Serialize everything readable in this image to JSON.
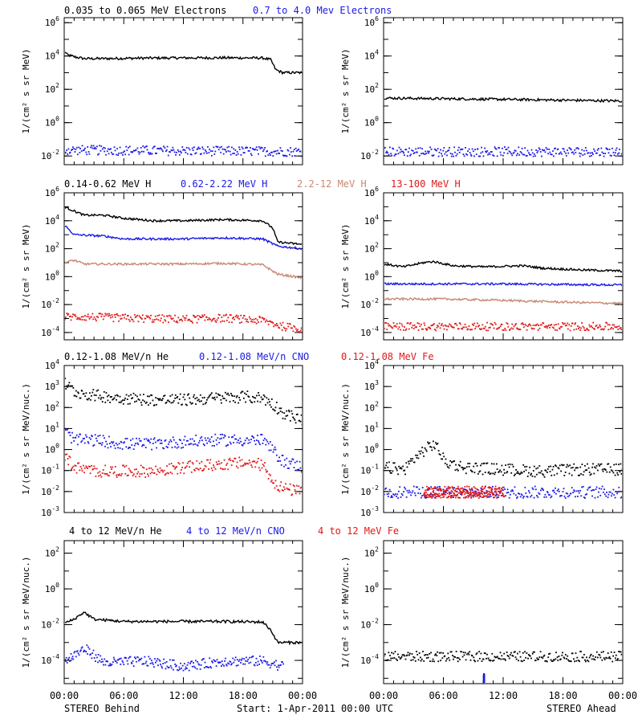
{
  "colors": {
    "black": "#000000",
    "blue": "#1a1ae6",
    "tan": "#c98872",
    "red": "#e01818"
  },
  "footer": {
    "left": "STEREO Behind",
    "center": "Start:  1-Apr-2011 00:00 UTC",
    "right": "STEREO Ahead"
  },
  "x_ticks": [
    "00:00",
    "06:00",
    "12:00",
    "18:00",
    "00:00"
  ],
  "chart_data": [
    {
      "type": "scatter",
      "row": 0,
      "col": 0,
      "log_y": true,
      "ylabel": "1/(cm² s sr MeV)",
      "ylim": [
        0.003,
        2000000
      ],
      "y_ticks": [
        {
          "v": 1000000.0,
          "b": "10",
          "e": "6"
        },
        {
          "v": 10000.0,
          "b": "10",
          "e": "4"
        },
        {
          "v": 100.0,
          "b": "10",
          "e": "2"
        },
        {
          "v": 1,
          "b": "10",
          "e": "0"
        },
        {
          "v": 0.01,
          "b": "10",
          "e": "-2"
        }
      ],
      "x_range_hours": [
        0,
        24
      ],
      "series": [
        {
          "name": "0.035 to 0.065 MeV Electrons",
          "color": "#000000",
          "mode": "line",
          "points": [
            [
              0,
              20000
            ],
            [
              0.3,
              12000
            ],
            [
              1,
              9000
            ],
            [
              2,
              7000
            ],
            [
              4,
              7000
            ],
            [
              8,
              7500
            ],
            [
              12,
              7700
            ],
            [
              16,
              7800
            ],
            [
              20,
              7600
            ],
            [
              20.8,
              6000
            ],
            [
              21.3,
              1500
            ],
            [
              22,
              1000
            ],
            [
              24,
              1000
            ]
          ]
        },
        {
          "name": "0.7 to 4.0 Mev Electrons",
          "color": "#1a1ae6",
          "mode": "dots",
          "points": [
            [
              0,
              0.025
            ],
            [
              24,
              0.02
            ]
          ]
        }
      ]
    },
    {
      "type": "scatter",
      "row": 0,
      "col": 1,
      "log_y": true,
      "ylabel": "1/(cm² s sr MeV)",
      "ylim": [
        0.003,
        2000000
      ],
      "y_ticks": [
        {
          "v": 1000000.0,
          "b": "10",
          "e": "6"
        },
        {
          "v": 10000.0,
          "b": "10",
          "e": "4"
        },
        {
          "v": 100.0,
          "b": "10",
          "e": "2"
        },
        {
          "v": 1,
          "b": "10",
          "e": "0"
        },
        {
          "v": 0.01,
          "b": "10",
          "e": "-2"
        }
      ],
      "x_range_hours": [
        0,
        24
      ],
      "series": [
        {
          "color": "#000000",
          "mode": "line",
          "points": [
            [
              0,
              30
            ],
            [
              12,
              25
            ],
            [
              24,
              20
            ]
          ]
        },
        {
          "color": "#1a1ae6",
          "mode": "dots",
          "points": [
            [
              0,
              0.02
            ],
            [
              24,
              0.02
            ]
          ]
        }
      ]
    },
    {
      "type": "scatter",
      "row": 1,
      "col": 0,
      "log_y": true,
      "ylabel": "1/(cm² s sr MeV)",
      "ylim": [
        3e-05,
        1000000
      ],
      "y_ticks": [
        {
          "v": 1000000.0,
          "b": "10",
          "e": "6"
        },
        {
          "v": 10000.0,
          "b": "10",
          "e": "4"
        },
        {
          "v": 100.0,
          "b": "10",
          "e": "2"
        },
        {
          "v": 1,
          "b": "10",
          "e": "0"
        },
        {
          "v": 0.01,
          "b": "10",
          "e": "-2"
        },
        {
          "v": 0.0001,
          "b": "10",
          "e": "-4"
        }
      ],
      "x_range_hours": [
        0,
        24
      ],
      "series": [
        {
          "name": "0.14-0.62 MeV H",
          "color": "#000000",
          "mode": "line",
          "points": [
            [
              0,
              100000
            ],
            [
              1,
              50000
            ],
            [
              2,
              25000
            ],
            [
              4,
              25000
            ],
            [
              6,
              15000
            ],
            [
              9,
              10000
            ],
            [
              12,
              10000
            ],
            [
              16,
              12000
            ],
            [
              20,
              10000
            ],
            [
              21,
              3000
            ],
            [
              21.5,
              300
            ],
            [
              24,
              200
            ]
          ]
        },
        {
          "name": "0.62-2.22 MeV H",
          "color": "#1a1ae6",
          "mode": "line",
          "points": [
            [
              0,
              5000
            ],
            [
              1,
              1000
            ],
            [
              4,
              800
            ],
            [
              6,
              500
            ],
            [
              12,
              500
            ],
            [
              16,
              600
            ],
            [
              20,
              500
            ],
            [
              21.5,
              150
            ],
            [
              24,
              100
            ]
          ]
        },
        {
          "name": "2.2-12 MeV H",
          "color": "#c98872",
          "mode": "line",
          "points": [
            [
              0,
              10
            ],
            [
              1,
              15
            ],
            [
              2,
              8
            ],
            [
              6,
              8
            ],
            [
              12,
              8
            ],
            [
              16,
              9
            ],
            [
              20,
              7
            ],
            [
              21.5,
              1.5
            ],
            [
              24,
              0.8
            ]
          ]
        },
        {
          "name": "13-100 MeV H",
          "color": "#e01818",
          "mode": "dots",
          "points": [
            [
              0,
              0.0015
            ],
            [
              2,
              0.0015
            ],
            [
              6,
              0.0012
            ],
            [
              12,
              0.001
            ],
            [
              16,
              0.0012
            ],
            [
              20,
              0.0008
            ],
            [
              22,
              0.0003
            ],
            [
              24,
              0.0002
            ]
          ]
        }
      ]
    },
    {
      "type": "scatter",
      "row": 1,
      "col": 1,
      "log_y": true,
      "ylabel": "1/(cm² s sr MeV)",
      "ylim": [
        3e-05,
        1000000
      ],
      "y_ticks": [
        {
          "v": 1000000.0,
          "b": "10",
          "e": "6"
        },
        {
          "v": 10000.0,
          "b": "10",
          "e": "4"
        },
        {
          "v": 100.0,
          "b": "10",
          "e": "2"
        },
        {
          "v": 1,
          "b": "10",
          "e": "0"
        },
        {
          "v": 0.01,
          "b": "10",
          "e": "-2"
        },
        {
          "v": 0.0001,
          "b": "10",
          "e": "-4"
        }
      ],
      "x_range_hours": [
        0,
        24
      ],
      "series": [
        {
          "color": "#000000",
          "mode": "line",
          "points": [
            [
              0,
              8
            ],
            [
              2,
              5
            ],
            [
              4,
              10
            ],
            [
              5,
              12
            ],
            [
              7,
              6
            ],
            [
              10,
              5
            ],
            [
              14,
              6
            ],
            [
              16,
              4
            ],
            [
              20,
              3
            ],
            [
              24,
              2.5
            ]
          ]
        },
        {
          "color": "#1a1ae6",
          "mode": "line",
          "points": [
            [
              0,
              0.3
            ],
            [
              6,
              0.3
            ],
            [
              12,
              0.3
            ],
            [
              24,
              0.25
            ]
          ]
        },
        {
          "color": "#c98872",
          "mode": "line",
          "points": [
            [
              0,
              0.025
            ],
            [
              6,
              0.025
            ],
            [
              12,
              0.02
            ],
            [
              18,
              0.015
            ],
            [
              24,
              0.012
            ]
          ]
        },
        {
          "color": "#e01818",
          "mode": "dots",
          "points": [
            [
              0,
              0.0003
            ],
            [
              12,
              0.0003
            ],
            [
              24,
              0.0003
            ]
          ]
        }
      ]
    },
    {
      "type": "scatter",
      "row": 2,
      "col": 0,
      "log_y": true,
      "ylabel": "1/(cm² s sr MeV/nuc.)",
      "ylim": [
        0.001,
        10000
      ],
      "y_ticks": [
        {
          "v": 10000.0,
          "b": "10",
          "e": "4"
        },
        {
          "v": 1000.0,
          "b": "10",
          "e": "3"
        },
        {
          "v": 100.0,
          "b": "10",
          "e": "2"
        },
        {
          "v": 10,
          "b": "10",
          "e": "1"
        },
        {
          "v": 1,
          "b": "10",
          "e": "0"
        },
        {
          "v": 0.1,
          "b": "10",
          "e": "-1"
        },
        {
          "v": 0.01,
          "b": "10",
          "e": "-2"
        },
        {
          "v": 0.001,
          "b": "10",
          "e": "-3"
        }
      ],
      "x_range_hours": [
        0,
        24
      ],
      "series": [
        {
          "name": "0.12-1.08 MeV/n He",
          "color": "#000000",
          "mode": "dots",
          "points": [
            [
              0,
              1500
            ],
            [
              1,
              600
            ],
            [
              3,
              400
            ],
            [
              6,
              300
            ],
            [
              9,
              250
            ],
            [
              12,
              250
            ],
            [
              15,
              300
            ],
            [
              18,
              350
            ],
            [
              20,
              300
            ],
            [
              21,
              150
            ],
            [
              22,
              60
            ],
            [
              24,
              25
            ]
          ]
        },
        {
          "name": "0.12-1.08 MeV/n CNO",
          "color": "#1a1ae6",
          "mode": "dots",
          "points": [
            [
              0,
              8
            ],
            [
              1,
              3
            ],
            [
              3,
              3
            ],
            [
              6,
              2
            ],
            [
              9,
              2
            ],
            [
              12,
              2.5
            ],
            [
              15,
              3
            ],
            [
              18,
              3
            ],
            [
              20,
              3
            ],
            [
              21.5,
              0.5
            ],
            [
              22,
              0.3
            ],
            [
              24,
              0.15
            ]
          ]
        },
        {
          "name": "0.12-1.08 MeV Fe",
          "color": "#e01818",
          "mode": "dots",
          "points": [
            [
              0,
              0.5
            ],
            [
              1,
              0.15
            ],
            [
              3,
              0.1
            ],
            [
              6,
              0.1
            ],
            [
              9,
              0.1
            ],
            [
              12,
              0.15
            ],
            [
              15,
              0.2
            ],
            [
              18,
              0.25
            ],
            [
              20,
              0.2
            ],
            [
              21,
              0.03
            ],
            [
              22,
              0.015
            ],
            [
              24,
              0.01
            ]
          ]
        }
      ]
    },
    {
      "type": "scatter",
      "row": 2,
      "col": 1,
      "log_y": true,
      "ylabel": "1/(cm² s sr MeV/nuc.)",
      "ylim": [
        0.001,
        10000
      ],
      "y_ticks": [
        {
          "v": 10000.0,
          "b": "10",
          "e": "4"
        },
        {
          "v": 1000.0,
          "b": "10",
          "e": "3"
        },
        {
          "v": 100.0,
          "b": "10",
          "e": "2"
        },
        {
          "v": 10,
          "b": "10",
          "e": "1"
        },
        {
          "v": 1,
          "b": "10",
          "e": "0"
        },
        {
          "v": 0.1,
          "b": "10",
          "e": "-1"
        },
        {
          "v": 0.01,
          "b": "10",
          "e": "-2"
        },
        {
          "v": 0.001,
          "b": "10",
          "e": "-3"
        }
      ],
      "x_range_hours": [
        0,
        24
      ],
      "series": [
        {
          "color": "#000000",
          "mode": "dots",
          "points": [
            [
              0,
              0.15
            ],
            [
              2,
              0.12
            ],
            [
              3,
              0.4
            ],
            [
              4,
              1
            ],
            [
              5,
              2
            ],
            [
              5.5,
              1
            ],
            [
              6,
              0.3
            ],
            [
              8,
              0.15
            ],
            [
              12,
              0.12
            ],
            [
              16,
              0.1
            ],
            [
              20,
              0.12
            ],
            [
              24,
              0.12
            ]
          ]
        },
        {
          "color": "#1a1ae6",
          "mode": "dots",
          "points": [
            [
              0,
              0.01
            ],
            [
              12,
              0.01
            ],
            [
              24,
              0.01
            ]
          ]
        },
        {
          "color": "#e01818",
          "mode": "dots",
          "points": [
            [
              4,
              0.01
            ],
            [
              12,
              0.01
            ]
          ]
        }
      ]
    },
    {
      "type": "scatter",
      "row": 3,
      "col": 0,
      "log_y": true,
      "ylabel": "1/(cm² s sr MeV/nuc.)",
      "ylim": [
        5e-06,
        500
      ],
      "y_ticks": [
        {
          "v": 100,
          "b": "10",
          "e": "2"
        },
        {
          "v": 1,
          "b": "10",
          "e": "0"
        },
        {
          "v": 0.01,
          "b": "10",
          "e": "-2"
        },
        {
          "v": 0.0001,
          "b": "10",
          "e": "-4"
        }
      ],
      "x_range_hours": [
        0,
        24
      ],
      "series": [
        {
          "name": "4 to 12 MeV/n He",
          "color": "#000000",
          "mode": "line",
          "points": [
            [
              0,
              0.012
            ],
            [
              1,
              0.02
            ],
            [
              2,
              0.05
            ],
            [
              3,
              0.02
            ],
            [
              6,
              0.015
            ],
            [
              12,
              0.015
            ],
            [
              16,
              0.015
            ],
            [
              20,
              0.014
            ],
            [
              20.8,
              0.005
            ],
            [
              21.5,
              0.001
            ],
            [
              24,
              0.001
            ]
          ]
        },
        {
          "name": "4 to 12 MeV/n CNO",
          "color": "#1a1ae6",
          "mode": "dots",
          "points": [
            [
              0,
              0.0001
            ],
            [
              2,
              0.0005
            ],
            [
              4,
              8e-05
            ],
            [
              8,
              0.0001
            ],
            [
              12,
              5e-05
            ],
            [
              16,
              0.0001
            ],
            [
              20,
              0.0001
            ],
            [
              22,
              5e-05
            ]
          ]
        },
        {
          "name": "4 to 12 MeV Fe",
          "color": "#e01818",
          "mode": "dots",
          "points": []
        }
      ]
    },
    {
      "type": "scatter",
      "row": 3,
      "col": 1,
      "log_y": true,
      "ylabel": "1/(cm² s sr MeV/nuc.)",
      "ylim": [
        5e-06,
        500
      ],
      "y_ticks": [
        {
          "v": 100,
          "b": "10",
          "e": "2"
        },
        {
          "v": 1,
          "b": "10",
          "e": "0"
        },
        {
          "v": 0.01,
          "b": "10",
          "e": "-2"
        },
        {
          "v": 0.0001,
          "b": "10",
          "e": "-4"
        }
      ],
      "x_range_hours": [
        0,
        24
      ],
      "series": [
        {
          "color": "#000000",
          "mode": "dots",
          "points": [
            [
              0,
              0.00018
            ],
            [
              12,
              0.00018
            ],
            [
              24,
              0.00018
            ]
          ]
        },
        {
          "color": "#1a1ae6",
          "mode": "dots",
          "points": [
            [
              10,
              1e-05
            ]
          ]
        }
      ]
    }
  ]
}
